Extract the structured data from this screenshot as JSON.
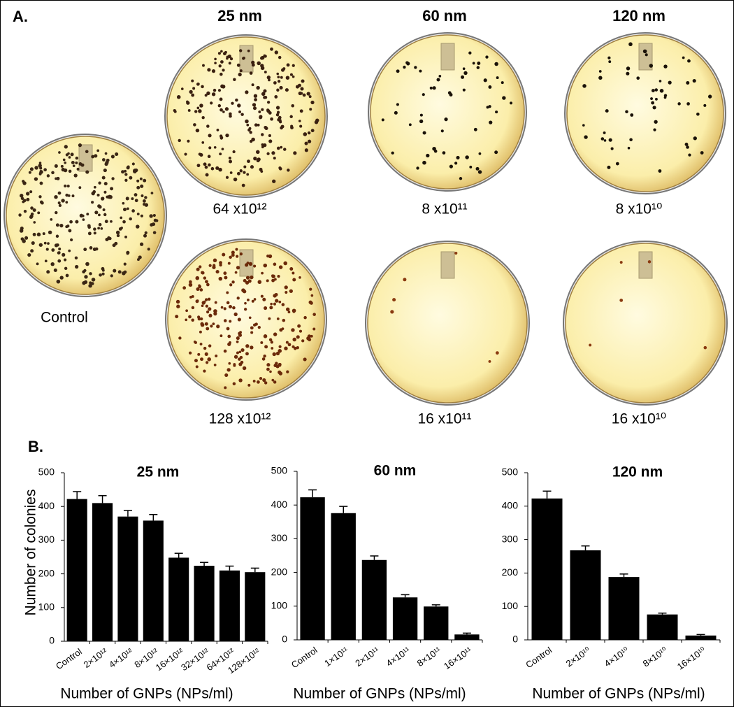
{
  "panel_a": {
    "label": "A.",
    "columns": [
      "25 nm",
      "60 nm",
      "120 nm"
    ],
    "control_label": "Control",
    "top_labels": [
      "64 x10¹²",
      "8 x10¹¹",
      "8 x10¹⁰"
    ],
    "bottom_labels": [
      "128 x10¹²",
      "16 x10¹¹",
      "16 x10¹⁰"
    ]
  },
  "panel_b_label": "B.",
  "chart_data": [
    {
      "type": "bar",
      "title": "25 nm",
      "ylabel": "Number of colonies",
      "xlabel": "Number of GNPs (NPs/ml)",
      "categories": [
        "Control",
        "2×10¹²",
        "4×10¹²",
        "8×10¹²",
        "16×10¹²",
        "32×10¹²",
        "64×10¹²",
        "128×10¹²"
      ],
      "values": [
        422,
        410,
        370,
        358,
        248,
        224,
        210,
        205
      ],
      "errors": [
        22,
        22,
        18,
        18,
        13,
        10,
        13,
        12
      ],
      "color": "#000000",
      "ylim": [
        0,
        500
      ],
      "yticks": [
        0,
        100,
        200,
        300,
        400,
        500
      ]
    },
    {
      "type": "bar",
      "title": "60 nm",
      "xlabel": "Number of GNPs (NPs/ml)",
      "categories": [
        "Control",
        "1×10¹¹",
        "2×10¹¹",
        "4×10¹¹",
        "8×10¹¹",
        "16×10¹¹"
      ],
      "values": [
        423,
        376,
        237,
        126,
        99,
        16
      ],
      "errors": [
        22,
        20,
        12,
        8,
        5,
        4
      ],
      "color": "#000000",
      "ylim": [
        0,
        500
      ],
      "yticks": [
        0,
        100,
        200,
        300,
        400,
        500
      ]
    },
    {
      "type": "bar",
      "title": "120 nm",
      "xlabel": "Number of  GNPs (NPs/ml)",
      "categories": [
        "Control",
        "2×10¹⁰",
        "4×10¹⁰",
        "8×10¹⁰",
        "16×10¹⁰"
      ],
      "values": [
        423,
        268,
        188,
        76,
        13
      ],
      "errors": [
        22,
        13,
        9,
        4,
        3
      ],
      "color": "#000000",
      "ylim": [
        0,
        500
      ],
      "yticks": [
        0,
        100,
        200,
        300,
        400,
        500
      ]
    }
  ]
}
